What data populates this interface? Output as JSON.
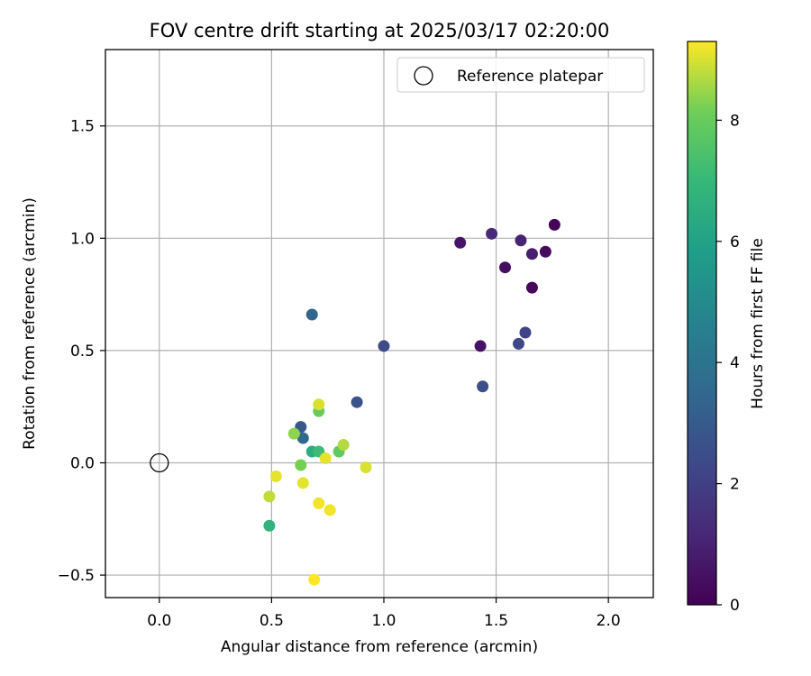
{
  "chart_data": {
    "type": "scatter",
    "title": "FOV centre drift starting at 2025/03/17 02:20:00",
    "xlabel": "Angular distance from reference (arcmin)",
    "ylabel": "Rotation from reference (arcmin)",
    "xlim": [
      -0.24,
      2.2
    ],
    "ylim": [
      -0.6,
      1.84
    ],
    "x_ticks": [
      0.0,
      0.5,
      1.0,
      1.5,
      2.0
    ],
    "x_tick_labels": [
      "0.0",
      "0.5",
      "1.0",
      "1.5",
      "2.0"
    ],
    "y_ticks": [
      -0.5,
      0.0,
      0.5,
      1.0,
      1.5
    ],
    "y_tick_labels": [
      "−0.5",
      "0.0",
      "0.5",
      "1.0",
      "1.5"
    ],
    "grid": true,
    "legend": {
      "position": "top-right",
      "entries": [
        "Reference platepar"
      ]
    },
    "reference_point": {
      "x": 0.0,
      "y": 0.0,
      "label": "Reference platepar"
    },
    "colorbar": {
      "label": "Hours from first FF file",
      "colormap": "viridis",
      "range": [
        0,
        9.3
      ],
      "ticks": [
        0,
        2,
        4,
        6,
        8
      ],
      "tick_labels": [
        "0",
        "2",
        "4",
        "6",
        "8"
      ]
    },
    "points": [
      {
        "x": 1.76,
        "y": 1.06,
        "c": 0.1
      },
      {
        "x": 1.66,
        "y": 0.78,
        "c": 0.2
      },
      {
        "x": 1.72,
        "y": 0.94,
        "c": 0.3
      },
      {
        "x": 1.54,
        "y": 0.87,
        "c": 0.4
      },
      {
        "x": 1.43,
        "y": 0.52,
        "c": 0.5
      },
      {
        "x": 1.34,
        "y": 0.98,
        "c": 0.6
      },
      {
        "x": 1.66,
        "y": 0.93,
        "c": 0.9
      },
      {
        "x": 1.61,
        "y": 0.99,
        "c": 1.0
      },
      {
        "x": 1.48,
        "y": 1.02,
        "c": 1.2
      },
      {
        "x": 1.63,
        "y": 0.58,
        "c": 2.1
      },
      {
        "x": 1.6,
        "y": 0.53,
        "c": 2.3
      },
      {
        "x": 1.0,
        "y": 0.52,
        "c": 2.4
      },
      {
        "x": 1.44,
        "y": 0.34,
        "c": 2.6
      },
      {
        "x": 0.88,
        "y": 0.27,
        "c": 2.7
      },
      {
        "x": 0.63,
        "y": 0.16,
        "c": 2.9
      },
      {
        "x": 0.68,
        "y": 0.66,
        "c": 3.4
      },
      {
        "x": 0.64,
        "y": 0.11,
        "c": 3.6
      },
      {
        "x": 0.68,
        "y": 0.05,
        "c": 6.5
      },
      {
        "x": 0.49,
        "y": -0.28,
        "c": 6.8
      },
      {
        "x": 0.71,
        "y": 0.05,
        "c": 7.2
      },
      {
        "x": 0.8,
        "y": 0.05,
        "c": 7.9
      },
      {
        "x": 0.71,
        "y": 0.23,
        "c": 8.0
      },
      {
        "x": 0.6,
        "y": 0.13,
        "c": 8.4
      },
      {
        "x": 0.63,
        "y": -0.01,
        "c": 8.2
      },
      {
        "x": 0.82,
        "y": 0.08,
        "c": 8.7
      },
      {
        "x": 0.49,
        "y": -0.15,
        "c": 8.8
      },
      {
        "x": 0.71,
        "y": 0.26,
        "c": 9.0
      },
      {
        "x": 0.74,
        "y": 0.02,
        "c": 9.1
      },
      {
        "x": 0.52,
        "y": -0.06,
        "c": 9.1
      },
      {
        "x": 0.64,
        "y": -0.09,
        "c": 9.1
      },
      {
        "x": 0.92,
        "y": -0.02,
        "c": 9.0
      },
      {
        "x": 0.71,
        "y": -0.18,
        "c": 9.2
      },
      {
        "x": 0.76,
        "y": -0.21,
        "c": 9.2
      },
      {
        "x": 0.69,
        "y": -0.52,
        "c": 9.3
      }
    ]
  }
}
